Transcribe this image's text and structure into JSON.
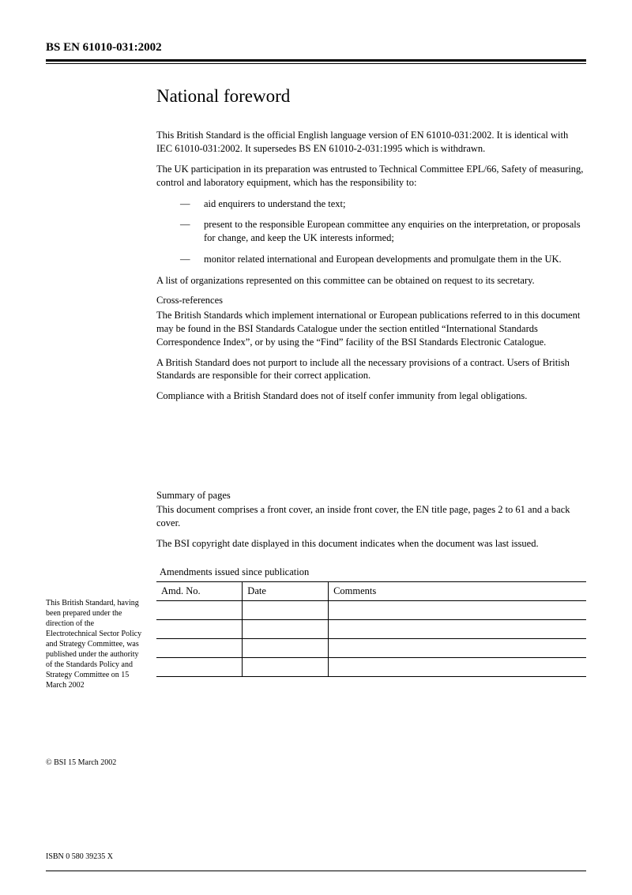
{
  "header": {
    "standard_id": "BS EN 61010-031:2002"
  },
  "main": {
    "title": "National foreword",
    "para1": "This British Standard is the official English language version of EN 61010-031:2002. It is identical with IEC 61010-031:2002. It supersedes BS EN 61010-2-031:1995 which is withdrawn.",
    "para2": "The UK participation in its preparation was entrusted to Technical Committee EPL/66, Safety of measuring, control and laboratory equipment, which has the responsibility to:",
    "bullets": [
      "aid enquirers to understand the text;",
      "present to the responsible European committee any enquiries on the interpretation, or proposals for change, and keep the UK interests informed;",
      "monitor related international and European developments and promulgate them in the UK."
    ],
    "para3": "A list of organizations represented on this committee can be obtained on request to its secretary.",
    "cross_ref_head": "Cross-references",
    "para4": "The British Standards which implement international or European publications referred to in this document may be found in the BSI Standards Catalogue under the section entitled “International Standards Correspondence Index”, or by using the “Find” facility of the BSI Standards Electronic Catalogue.",
    "para5": "A British Standard does not purport to include all the necessary provisions of a contract. Users of British Standards are responsible for their correct application.",
    "compliance": "Compliance with a British Standard does not of itself confer immunity from legal obligations.",
    "summary_head": "Summary of pages",
    "summary_para1": "This document comprises a front cover, an inside front cover, the EN title page, pages 2 to 61 and a back cover.",
    "summary_para2": "The BSI copyright date displayed in this document indicates when the document was last issued.",
    "table_title": "Amendments issued since publication",
    "table_headers": [
      "Amd. No.",
      "Date",
      "Comments"
    ]
  },
  "sidebar": {
    "note": "This British Standard, having been prepared under the direction of the Electrotechnical Sector Policy and Strategy Committee, was published under the authority of the Standards Policy and Strategy Committee on 15 March 2002",
    "copyright": "© BSI 15 March 2002",
    "isbn": "ISBN 0 580 39235 X"
  }
}
